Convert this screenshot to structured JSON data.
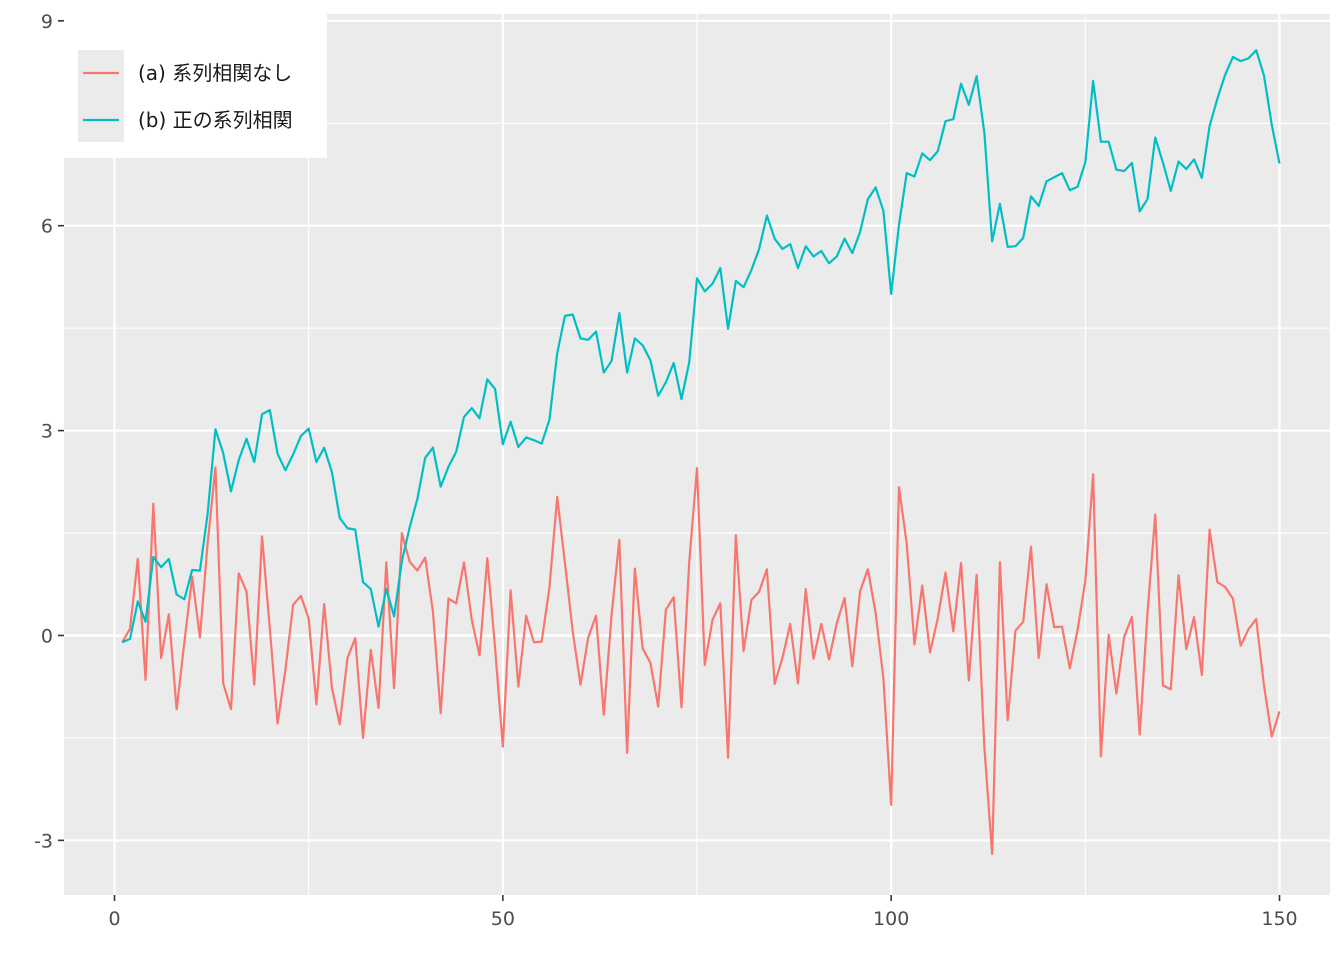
{
  "chart_data": {
    "type": "line",
    "title": "",
    "xlabel": "",
    "ylabel": "",
    "xlim": [
      -6.5,
      156.5
    ],
    "ylim": [
      -3.8,
      9.1
    ],
    "x_ticks": [
      0,
      50,
      100,
      150
    ],
    "x_tick_labels": [
      "0",
      "50",
      "100",
      "150"
    ],
    "y_ticks": [
      -3,
      0,
      3,
      6,
      9
    ],
    "y_tick_labels": [
      "-3",
      "0",
      "3",
      "6",
      "9"
    ],
    "grid": true,
    "legend_position": "top-left",
    "series": [
      {
        "name": "(a) 系列相関なし",
        "color": "#F8766D",
        "x": [
          1,
          2,
          3,
          4,
          5,
          6,
          7,
          8,
          9,
          10,
          11,
          12,
          13,
          14,
          15,
          16,
          17,
          18,
          19,
          20,
          21,
          22,
          23,
          24,
          25,
          26,
          27,
          28,
          29,
          30,
          31,
          32,
          33,
          34,
          35,
          36,
          37,
          38,
          39,
          40,
          41,
          42,
          43,
          44,
          45,
          46,
          47,
          48,
          49,
          50,
          51,
          52,
          53,
          54,
          55,
          56,
          57,
          58,
          59,
          60,
          61,
          62,
          63,
          64,
          65,
          66,
          67,
          68,
          69,
          70,
          71,
          72,
          73,
          74,
          75,
          76,
          77,
          78,
          79,
          80,
          81,
          82,
          83,
          84,
          85,
          86,
          87,
          88,
          89,
          90,
          91,
          92,
          93,
          94,
          95,
          96,
          97,
          98,
          99,
          100,
          101,
          102,
          103,
          104,
          105,
          106,
          107,
          108,
          109,
          110,
          111,
          112,
          113,
          114,
          115,
          116,
          117,
          118,
          119,
          120,
          121,
          122,
          123,
          124,
          125,
          126,
          127,
          128,
          129,
          130,
          131,
          132,
          133,
          134,
          135,
          136,
          137,
          138,
          139,
          140,
          141,
          142,
          143,
          144,
          145,
          146,
          147,
          148,
          149,
          150
        ],
        "values": [
          -0.1,
          0.1,
          1.12,
          -0.65,
          1.93,
          -0.33,
          0.31,
          -1.08,
          -0.1,
          0.86,
          -0.03,
          1.36,
          2.46,
          -0.7,
          -1.08,
          0.91,
          0.64,
          -0.72,
          1.45,
          0.1,
          -1.29,
          -0.51,
          0.45,
          0.58,
          0.25,
          -1.01,
          0.46,
          -0.77,
          -1.3,
          -0.33,
          -0.04,
          -1.5,
          -0.21,
          -1.06,
          1.07,
          -0.77,
          1.5,
          1.08,
          0.95,
          1.14,
          0.35,
          -1.14,
          0.54,
          0.47,
          1.07,
          0.23,
          -0.29,
          1.13,
          -0.18,
          -1.63,
          0.66,
          -0.75,
          0.29,
          -0.1,
          -0.09,
          0.7,
          2.03,
          1.06,
          0.06,
          -0.72,
          -0.03,
          0.29,
          -1.16,
          0.3,
          1.4,
          -1.72,
          0.98,
          -0.19,
          -0.4,
          -1.04,
          0.38,
          0.56,
          -1.05,
          1.08,
          2.45,
          -0.43,
          0.23,
          0.47,
          -1.79,
          1.47,
          -0.23,
          0.52,
          0.64,
          0.97,
          -0.71,
          -0.33,
          0.17,
          -0.7,
          0.68,
          -0.34,
          0.17,
          -0.35,
          0.18,
          0.55,
          -0.45,
          0.65,
          0.97,
          0.33,
          -0.63,
          -2.48,
          2.17,
          1.35,
          -0.13,
          0.73,
          -0.25,
          0.25,
          0.92,
          0.06,
          1.06,
          -0.66,
          0.89,
          -1.64,
          -3.2,
          1.07,
          -1.24,
          0.07,
          0.2,
          1.3,
          -0.33,
          0.75,
          0.12,
          0.13,
          -0.48,
          0.08,
          0.8,
          2.36,
          -1.77,
          0.01,
          -0.85,
          -0.02,
          0.27,
          -1.45,
          0.33,
          1.77,
          -0.73,
          -0.79,
          0.88,
          -0.2,
          0.27,
          -0.58,
          1.55,
          0.78,
          0.71,
          0.54,
          -0.15,
          0.09,
          0.24,
          -0.73,
          -1.48,
          -1.11
        ]
      },
      {
        "name": "(b) 正の系列相関",
        "color": "#00BFC4",
        "x": [
          1,
          2,
          3,
          4,
          5,
          6,
          7,
          8,
          9,
          10,
          11,
          12,
          13,
          14,
          15,
          16,
          17,
          18,
          19,
          20,
          21,
          22,
          23,
          24,
          25,
          26,
          27,
          28,
          29,
          30,
          31,
          32,
          33,
          34,
          35,
          36,
          37,
          38,
          39,
          40,
          41,
          42,
          43,
          44,
          45,
          46,
          47,
          48,
          49,
          50,
          51,
          52,
          53,
          54,
          55,
          56,
          57,
          58,
          59,
          60,
          61,
          62,
          63,
          64,
          65,
          66,
          67,
          68,
          69,
          70,
          71,
          72,
          73,
          74,
          75,
          76,
          77,
          78,
          79,
          80,
          81,
          82,
          83,
          84,
          85,
          86,
          87,
          88,
          89,
          90,
          91,
          92,
          93,
          94,
          95,
          96,
          97,
          98,
          99,
          100,
          101,
          102,
          103,
          104,
          105,
          106,
          107,
          108,
          109,
          110,
          111,
          112,
          113,
          114,
          115,
          116,
          117,
          118,
          119,
          120,
          121,
          122,
          123,
          124,
          125,
          126,
          127,
          128,
          129,
          130,
          131,
          132,
          133,
          134,
          135,
          136,
          137,
          138,
          139,
          140,
          141,
          142,
          143,
          144,
          145,
          146,
          147,
          148,
          149,
          150
        ],
        "values": [
          -0.1,
          -0.05,
          0.5,
          0.2,
          1.15,
          1.0,
          1.12,
          0.6,
          0.53,
          0.96,
          0.95,
          1.79,
          3.02,
          2.67,
          2.11,
          2.57,
          2.88,
          2.54,
          3.24,
          3.3,
          2.66,
          2.42,
          2.65,
          2.92,
          3.03,
          2.54,
          2.75,
          2.39,
          1.72,
          1.57,
          1.55,
          0.78,
          0.68,
          0.13,
          0.68,
          0.28,
          1.09,
          1.58,
          2.0,
          2.6,
          2.75,
          2.18,
          2.47,
          2.69,
          3.2,
          3.33,
          3.18,
          3.75,
          3.61,
          2.8,
          3.13,
          2.76,
          2.9,
          2.86,
          2.81,
          3.16,
          4.13,
          4.68,
          4.7,
          4.35,
          4.33,
          4.45,
          3.85,
          4.02,
          4.72,
          3.85,
          4.35,
          4.25,
          4.03,
          3.51,
          3.71,
          3.99,
          3.46,
          4.0,
          5.23,
          5.04,
          5.15,
          5.38,
          4.49,
          5.19,
          5.1,
          5.35,
          5.66,
          6.15,
          5.81,
          5.66,
          5.73,
          5.38,
          5.7,
          5.55,
          5.63,
          5.45,
          5.55,
          5.81,
          5.6,
          5.91,
          6.39,
          6.56,
          6.22,
          5.0,
          6.01,
          6.77,
          6.72,
          7.06,
          6.96,
          7.09,
          7.53,
          7.56,
          8.08,
          7.77,
          8.19,
          7.36,
          5.77,
          6.32,
          5.69,
          5.7,
          5.82,
          6.43,
          6.29,
          6.65,
          6.71,
          6.77,
          6.52,
          6.57,
          6.93,
          8.12,
          7.23,
          7.23,
          6.82,
          6.8,
          6.92,
          6.21,
          6.39,
          7.29,
          6.92,
          6.51,
          6.94,
          6.83,
          6.97,
          6.7,
          7.46,
          7.86,
          8.21,
          8.47,
          8.41,
          8.45,
          8.57,
          8.2,
          7.48,
          6.91
        ]
      }
    ]
  }
}
